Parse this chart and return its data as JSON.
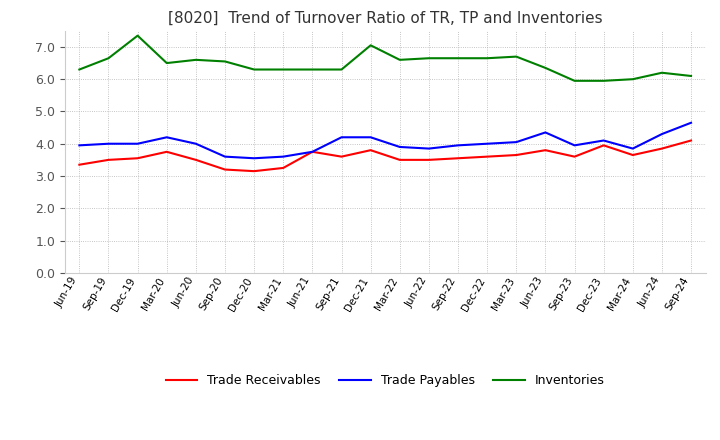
{
  "title": "[8020]  Trend of Turnover Ratio of TR, TP and Inventories",
  "x_labels": [
    "Jun-19",
    "Sep-19",
    "Dec-19",
    "Mar-20",
    "Jun-20",
    "Sep-20",
    "Dec-20",
    "Mar-21",
    "Jun-21",
    "Sep-21",
    "Dec-21",
    "Mar-22",
    "Jun-22",
    "Sep-22",
    "Dec-22",
    "Mar-23",
    "Jun-23",
    "Sep-23",
    "Dec-23",
    "Mar-24",
    "Jun-24",
    "Sep-24"
  ],
  "trade_receivables": [
    3.35,
    3.5,
    3.55,
    3.75,
    3.5,
    3.2,
    3.15,
    3.25,
    3.75,
    3.6,
    3.8,
    3.5,
    3.5,
    3.55,
    3.6,
    3.65,
    3.8,
    3.6,
    3.95,
    3.65,
    3.85,
    4.1
  ],
  "trade_payables": [
    3.95,
    4.0,
    4.0,
    4.2,
    4.0,
    3.6,
    3.55,
    3.6,
    3.75,
    4.2,
    4.2,
    3.9,
    3.85,
    3.95,
    4.0,
    4.05,
    4.35,
    3.95,
    4.1,
    3.85,
    4.3,
    4.65
  ],
  "inventories": [
    6.3,
    6.65,
    7.35,
    6.5,
    6.6,
    6.55,
    6.3,
    6.3,
    6.3,
    6.3,
    7.05,
    6.6,
    6.65,
    6.65,
    6.65,
    6.7,
    6.35,
    5.95,
    5.95,
    6.0,
    6.2,
    6.1
  ],
  "tr_color": "#ff0000",
  "tp_color": "#0000ff",
  "inv_color": "#008000",
  "ylim": [
    0.0,
    7.5
  ],
  "yticks": [
    0.0,
    1.0,
    2.0,
    3.0,
    4.0,
    5.0,
    6.0,
    7.0
  ],
  "grid_color": "#aaaaaa",
  "background_color": "#ffffff",
  "legend_labels": [
    "Trade Receivables",
    "Trade Payables",
    "Inventories"
  ]
}
